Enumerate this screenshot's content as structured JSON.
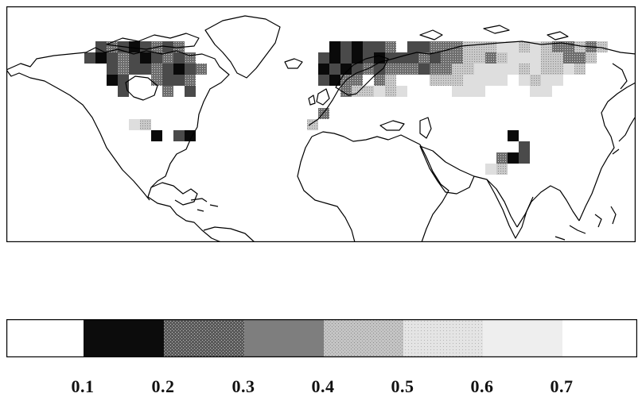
{
  "map": {
    "projection": "equirectangular",
    "region": "Northern Hemisphere land areas",
    "lon_range": [
      -180,
      180
    ],
    "lat_range": [
      -10,
      85
    ],
    "coastline_color": "#000000",
    "cell_colors": [
      "#ffffff",
      "#0a0a0a",
      "#4a4a4a",
      "#8c8c8c",
      "#bdbdbd",
      "#dedede"
    ]
  },
  "colorbar": {
    "bin_colors": [
      "#ffffff",
      "#0c0c0c",
      "#4c4c4c",
      "#7e7e7e",
      "#b2b2b2",
      "#d6d6d6",
      "#eeeeee",
      "#ffffff"
    ],
    "tick_values": [
      0.1,
      0.2,
      0.3,
      0.4,
      0.5,
      0.6,
      0.7
    ],
    "ticks": [
      "0.1",
      "0.2",
      "0.3",
      "0.4",
      "0.5",
      "0.6",
      "0.7"
    ]
  }
}
